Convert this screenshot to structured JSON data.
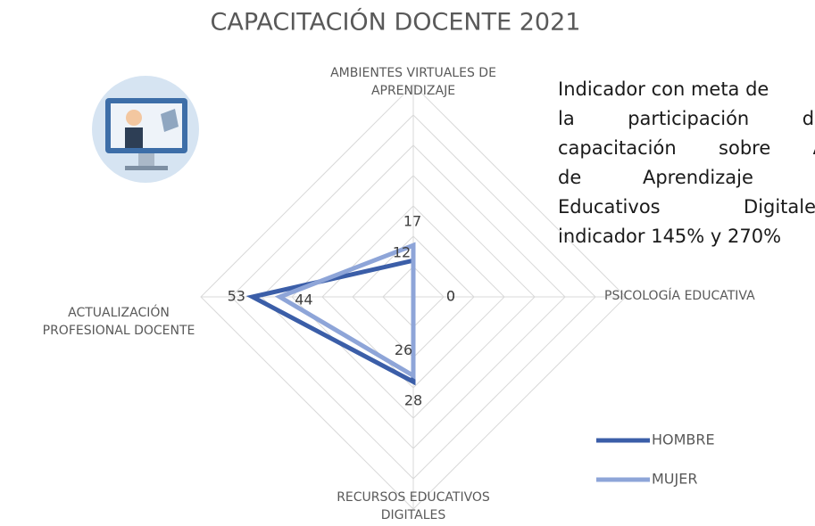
{
  "chart_data": {
    "type": "radar",
    "title": "CAPACITACIÓN DOCENTE 2021",
    "categories": [
      "AMBIENTES VIRTUALES DE APRENDIZAJE",
      "PSICOLOGÍA EDUCATIVA",
      "RECURSOS EDUCATIVOS DIGITALES",
      "ACTUALIZACIÓN PROFESIONAL DOCENTE"
    ],
    "series": [
      {
        "name": "HOMBRE",
        "color": "#3b5ea8",
        "values": [
          12,
          0,
          28,
          53
        ]
      },
      {
        "name": "MUJER",
        "color": "#8ea5d8",
        "values": [
          17,
          0,
          26,
          44
        ]
      }
    ],
    "rlim": [
      0,
      70
    ],
    "rticks": [
      10,
      20,
      30,
      40,
      50,
      60,
      70
    ],
    "grid": true
  },
  "note": {
    "lines": [
      "Indicador con meta de",
      "la participación de",
      "capacitación sobre A",
      "de Aprendizaje y",
      "Educativos Digitales",
      "indicador 145% y 270%"
    ]
  }
}
